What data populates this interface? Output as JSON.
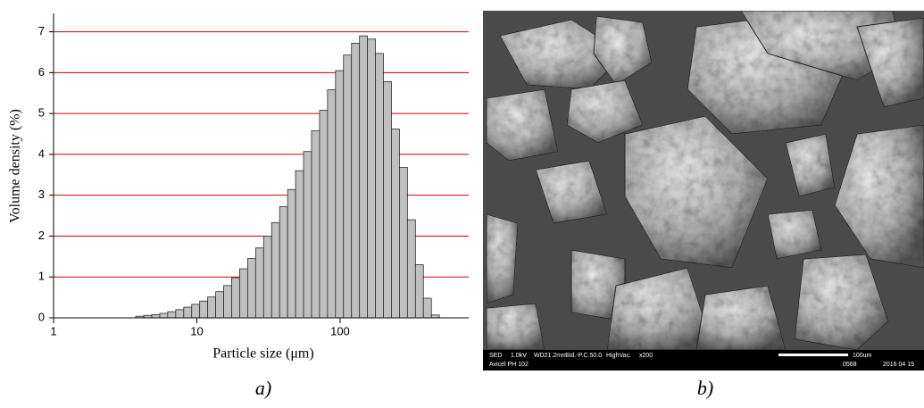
{
  "chart_data": {
    "type": "histogram",
    "xlabel": "Particle size (μm)",
    "ylabel": "Volume density (%)",
    "xscale": "log",
    "xlim": [
      1,
      790
    ],
    "xticks": [
      1,
      10,
      100
    ],
    "ylim": [
      0,
      7.45
    ],
    "yticks": [
      0,
      1,
      2,
      3,
      4,
      5,
      6,
      7
    ],
    "grid": true,
    "grid_color": "#cc0000",
    "color": "#c0c0c0",
    "edgecolor": "#2a2a2a",
    "bins": [
      3.75,
      4.264,
      4.848,
      5.512,
      6.267,
      7.126,
      8.102,
      9.212,
      10.47,
      11.91,
      13.54,
      15.4,
      17.5,
      19.9,
      22.63,
      25.73,
      29.25,
      33.26,
      37.82,
      43.0,
      48.89,
      55.59,
      63.21,
      71.87,
      81.71,
      92.9,
      105.6,
      120.1,
      136.6,
      155.3,
      176.5,
      200.7,
      228.2,
      259.5,
      295.0,
      335.5,
      381.4,
      433.7,
      493.1
    ],
    "values": [
      0.04,
      0.06,
      0.08,
      0.11,
      0.15,
      0.2,
      0.26,
      0.33,
      0.41,
      0.51,
      0.64,
      0.79,
      0.98,
      1.2,
      1.45,
      1.71,
      2.0,
      2.33,
      2.72,
      3.14,
      3.6,
      4.07,
      4.58,
      5.08,
      5.58,
      6.05,
      6.43,
      6.72,
      6.9,
      6.82,
      6.47,
      5.78,
      4.62,
      3.68,
      2.4,
      1.3,
      0.48,
      0.07
    ]
  },
  "captions": [
    "a)",
    "b)"
  ],
  "sem_image": {
    "info": [
      "SED",
      "1.0kV",
      "WD21.2mm",
      "Std.-P.C.50.0",
      "HighVac.",
      "x200"
    ],
    "scale_bar": "100um",
    "sample": "Avicel PH 102",
    "image_id": "0568",
    "date": "2016 04 15"
  }
}
